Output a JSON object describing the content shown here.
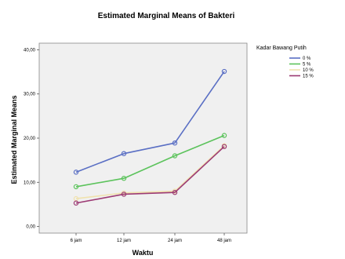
{
  "chart_data": {
    "type": "line",
    "title": "Estimated Marginal Means of Bakteri",
    "xlabel": "Waktu",
    "ylabel": "Estimated Marginal Means",
    "categories": [
      "6 jam",
      "12 jam",
      "24 jam",
      "48 jam"
    ],
    "ylim": [
      -1.5,
      41.5
    ],
    "yticks": [
      0,
      10,
      20,
      30,
      40
    ],
    "ytick_labels": [
      "0,00",
      "10,00",
      "20,00",
      "30,00",
      "40,00"
    ],
    "grid": false,
    "legend_position": "right",
    "legend_title": "Kadar Bawang Putih",
    "series": [
      {
        "name": "0 %",
        "color": "#5a6fc4",
        "values": [
          12.3,
          16.5,
          18.9,
          35.1
        ]
      },
      {
        "name": "5 %",
        "color": "#5cc35c",
        "values": [
          9.0,
          10.9,
          16.0,
          20.6
        ]
      },
      {
        "name": "10 %",
        "color": "#f0e2ae",
        "values": [
          6.3,
          7.6,
          8.0,
          18.3
        ]
      },
      {
        "name": "15 %",
        "color": "#9c3a74",
        "values": [
          5.3,
          7.3,
          7.7,
          18.1
        ]
      }
    ]
  }
}
